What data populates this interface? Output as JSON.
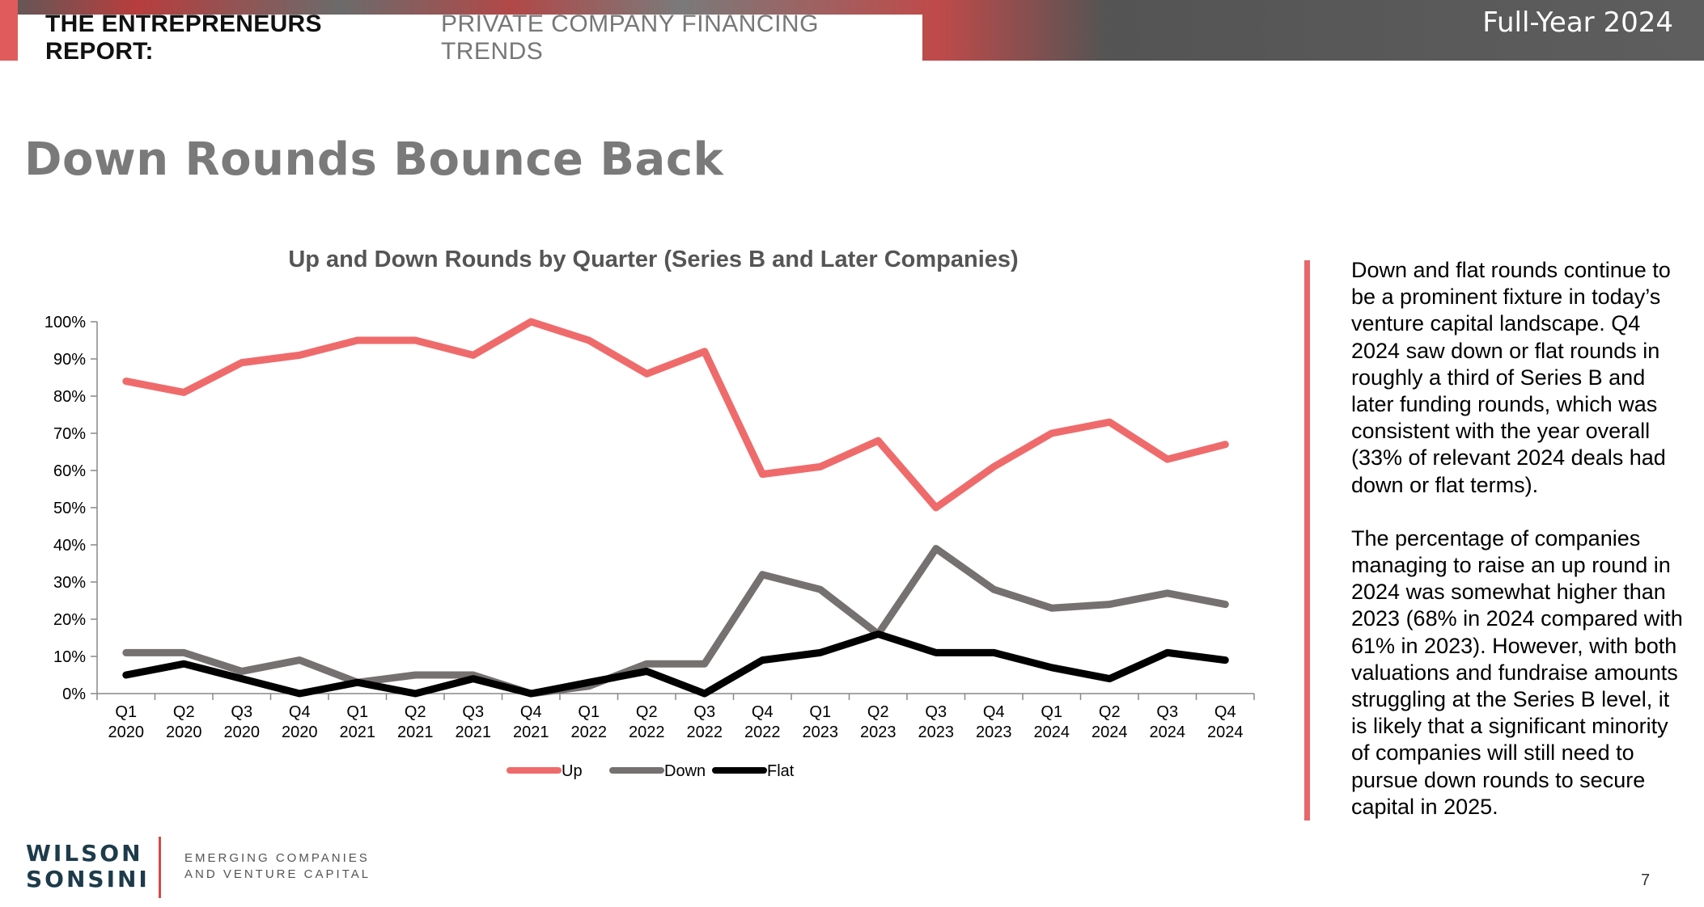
{
  "header": {
    "report_strong": "THE ENTREPRENEURS REPORT:",
    "report_light": "PRIVATE COMPANY FINANCING TRENDS",
    "edition": "Full-Year 2024"
  },
  "page_title": "Down Rounds Bounce Back",
  "chart_data": {
    "type": "line",
    "title": "Up and Down Rounds by Quarter (Series B and Later Companies)",
    "xlabel": "",
    "ylabel": "",
    "ylim": [
      0,
      100
    ],
    "y_ticks": [
      "0%",
      "10%",
      "20%",
      "30%",
      "40%",
      "50%",
      "60%",
      "70%",
      "80%",
      "90%",
      "100%"
    ],
    "categories": [
      [
        "Q1",
        "2020"
      ],
      [
        "Q2",
        "2020"
      ],
      [
        "Q3",
        "2020"
      ],
      [
        "Q4",
        "2020"
      ],
      [
        "Q1",
        "2021"
      ],
      [
        "Q2",
        "2021"
      ],
      [
        "Q3",
        "2021"
      ],
      [
        "Q4",
        "2021"
      ],
      [
        "Q1",
        "2022"
      ],
      [
        "Q2",
        "2022"
      ],
      [
        "Q3",
        "2022"
      ],
      [
        "Q4",
        "2022"
      ],
      [
        "Q1",
        "2023"
      ],
      [
        "Q2",
        "2023"
      ],
      [
        "Q3",
        "2023"
      ],
      [
        "Q4",
        "2023"
      ],
      [
        "Q1",
        "2024"
      ],
      [
        "Q2",
        "2024"
      ],
      [
        "Q3",
        "2024"
      ],
      [
        "Q4",
        "2024"
      ]
    ],
    "series": [
      {
        "name": "Up",
        "color": "#ef6b6b",
        "values": [
          84,
          81,
          89,
          91,
          95,
          95,
          91,
          100,
          95,
          86,
          92,
          59,
          61,
          68,
          50,
          61,
          70,
          73,
          63,
          67
        ]
      },
      {
        "name": "Down",
        "color": "#767171",
        "values": [
          11,
          11,
          6,
          9,
          3,
          5,
          5,
          0,
          2,
          8,
          8,
          32,
          28,
          16,
          39,
          28,
          23,
          24,
          27,
          24
        ]
      },
      {
        "name": "Flat",
        "color": "#000000",
        "values": [
          5,
          8,
          4,
          0,
          3,
          0,
          4,
          0,
          3,
          6,
          0,
          9,
          11,
          16,
          11,
          11,
          7,
          4,
          11,
          9
        ]
      }
    ],
    "legend_position": "bottom",
    "grid": false
  },
  "sidebar": {
    "paragraph1": "Down and flat rounds continue to be a prominent fixture in today’s venture capital landscape. Q4 2024 saw down or flat rounds in roughly a third of Series B and later funding rounds, which was consistent with the year overall (33% of relevant 2024 deals had down or flat terms).",
    "paragraph2": "The percentage of companies managing to raise an up round in 2024 was somewhat higher than 2023 (68% in 2024 compared with 61% in 2023). However, with both valuations and fundraise amounts struggling at the Series B level, it is likely that a significant minority of companies will still need to pursue down rounds to secure capital in 2025."
  },
  "footer": {
    "logo_line1": "WILSON",
    "logo_line2": "SONSINI",
    "tagline_line1": "EMERGING COMPANIES",
    "tagline_line2": "AND VENTURE CAPITAL",
    "page_number": "7"
  }
}
